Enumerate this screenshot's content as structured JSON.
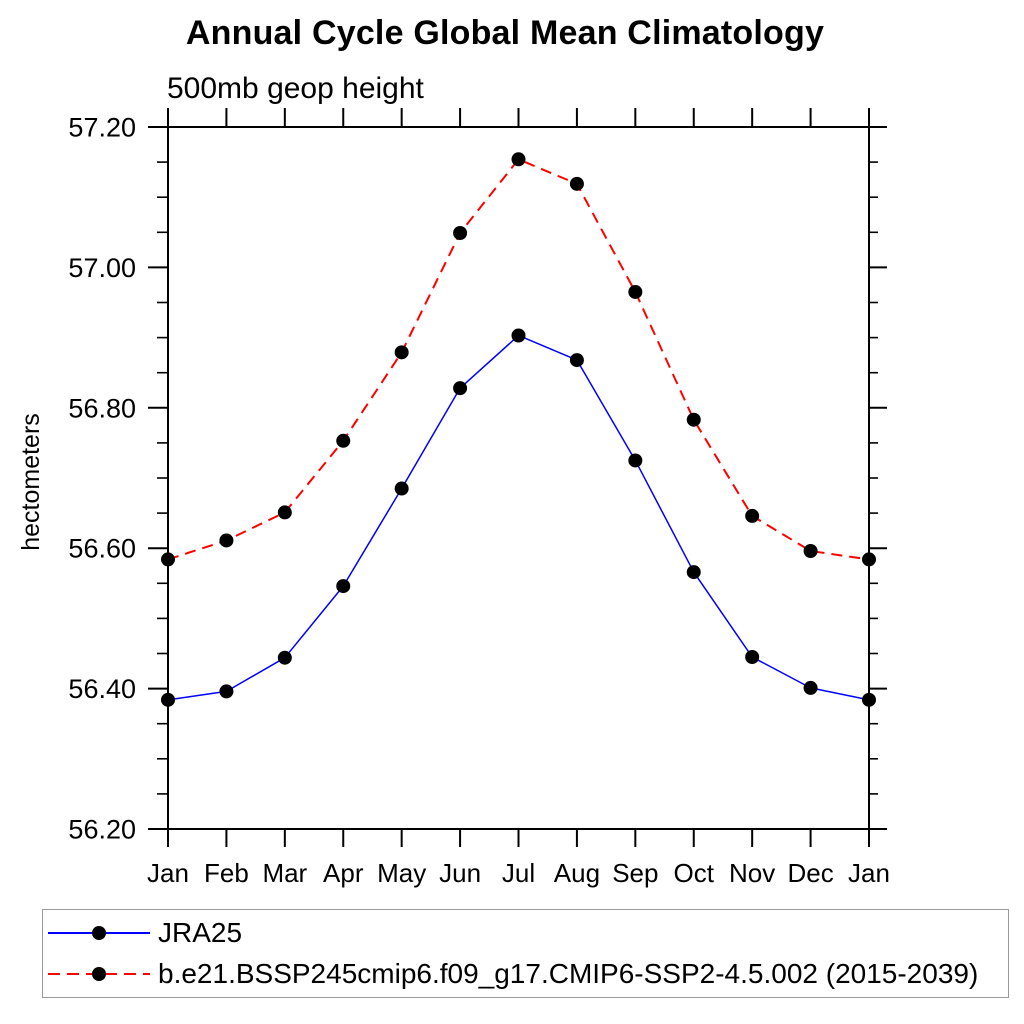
{
  "chart_data": {
    "type": "line",
    "title": "Annual Cycle Global Mean Climatology",
    "subtitle": "500mb geop height",
    "ylabel": "hectometers",
    "xlabel": "",
    "x_categories": [
      "Jan",
      "Feb",
      "Mar",
      "Apr",
      "May",
      "Jun",
      "Jul",
      "Aug",
      "Sep",
      "Oct",
      "Nov",
      "Dec",
      "Jan"
    ],
    "ylim": [
      56.2,
      57.2
    ],
    "y_ticks": {
      "values": [
        56.2,
        56.4,
        56.6,
        56.8,
        57.0,
        57.2
      ],
      "labels": [
        "56.20",
        "56.40",
        "56.60",
        "56.80",
        "57.00",
        "57.20"
      ]
    },
    "y_minor_interval": 0.05,
    "grid": false,
    "frame": true,
    "legend_position": "bottom-outside",
    "axis_color": "#000000",
    "marker_color": "#000000",
    "series": [
      {
        "name": "JRA25",
        "color": "#0000ff",
        "line_style": "solid",
        "line_width": 1.5,
        "marker": "filled-circle",
        "values": [
          56.384,
          56.396,
          56.444,
          56.546,
          56.685,
          56.828,
          56.903,
          56.868,
          56.725,
          56.566,
          56.445,
          56.401,
          56.384
        ]
      },
      {
        "name": "b.e21.BSSP245cmip6.f09_g17.CMIP6-SSP2-4.5.002 (2015-2039)",
        "color": "#ff0000",
        "line_style": "dashed",
        "line_width": 2,
        "marker": "filled-circle",
        "values": [
          56.584,
          56.611,
          56.651,
          56.753,
          56.879,
          57.049,
          57.154,
          57.119,
          56.965,
          56.783,
          56.646,
          56.596,
          56.584
        ]
      }
    ]
  }
}
